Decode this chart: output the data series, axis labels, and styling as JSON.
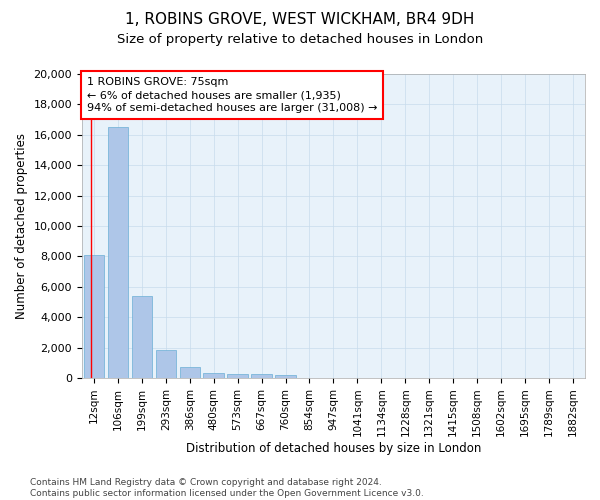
{
  "title": "1, ROBINS GROVE, WEST WICKHAM, BR4 9DH",
  "subtitle": "Size of property relative to detached houses in London",
  "xlabel": "Distribution of detached houses by size in London",
  "ylabel": "Number of detached properties",
  "categories": [
    "12sqm",
    "106sqm",
    "199sqm",
    "293sqm",
    "386sqm",
    "480sqm",
    "573sqm",
    "667sqm",
    "760sqm",
    "854sqm",
    "947sqm",
    "1041sqm",
    "1134sqm",
    "1228sqm",
    "1321sqm",
    "1415sqm",
    "1508sqm",
    "1602sqm",
    "1695sqm",
    "1789sqm",
    "1882sqm"
  ],
  "values": [
    8100,
    16500,
    5400,
    1850,
    750,
    350,
    270,
    230,
    200,
    0,
    0,
    0,
    0,
    0,
    0,
    0,
    0,
    0,
    0,
    0,
    0
  ],
  "bar_color": "#aec6e8",
  "bar_edge_color": "#6bafd6",
  "annotation_box_text": "1 ROBINS GROVE: 75sqm\n← 6% of detached houses are smaller (1,935)\n94% of semi-detached houses are larger (31,008) →",
  "red_line_x": -0.1,
  "ylim": [
    0,
    20000
  ],
  "yticks": [
    0,
    2000,
    4000,
    6000,
    8000,
    10000,
    12000,
    14000,
    16000,
    18000,
    20000
  ],
  "footnote": "Contains HM Land Registry data © Crown copyright and database right 2024.\nContains public sector information licensed under the Open Government Licence v3.0.",
  "grid_color": "#c8dced",
  "bg_color": "#e8f2fa",
  "title_fontsize": 11,
  "subtitle_fontsize": 9.5,
  "axis_label_fontsize": 8.5,
  "tick_fontsize": 8,
  "annot_fontsize": 8,
  "footnote_fontsize": 6.5
}
